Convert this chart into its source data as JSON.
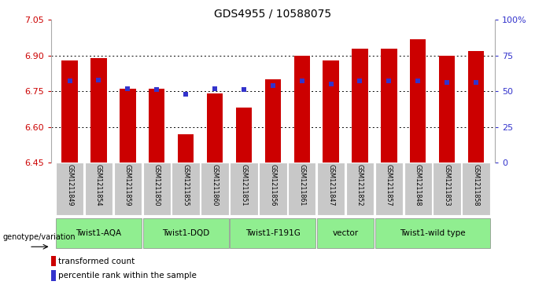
{
  "title": "GDS4955 / 10588075",
  "samples": [
    "GSM1211849",
    "GSM1211854",
    "GSM1211859",
    "GSM1211850",
    "GSM1211855",
    "GSM1211860",
    "GSM1211851",
    "GSM1211856",
    "GSM1211861",
    "GSM1211847",
    "GSM1211852",
    "GSM1211857",
    "GSM1211848",
    "GSM1211853",
    "GSM1211858"
  ],
  "bar_values": [
    6.88,
    6.89,
    6.76,
    6.76,
    6.57,
    6.74,
    6.68,
    6.8,
    6.9,
    6.88,
    6.93,
    6.93,
    6.97,
    6.9,
    6.92
  ],
  "percentile_values": [
    57,
    58,
    52,
    51,
    48,
    52,
    51,
    54,
    57,
    55,
    57,
    57,
    57,
    56,
    56
  ],
  "ylim_left": [
    6.45,
    7.05
  ],
  "ylim_right": [
    0,
    100
  ],
  "yticks_left": [
    6.45,
    6.6,
    6.75,
    6.9,
    7.05
  ],
  "yticks_right": [
    0,
    25,
    50,
    75,
    100
  ],
  "ytick_labels_right": [
    "0",
    "25",
    "50",
    "75",
    "100%"
  ],
  "bar_color": "#cc0000",
  "percentile_color": "#3333cc",
  "bar_bottom": 6.45,
  "groups": [
    {
      "label": "Twist1-AQA",
      "start": 0,
      "end": 3
    },
    {
      "label": "Twist1-DQD",
      "start": 3,
      "end": 6
    },
    {
      "label": "Twist1-F191G",
      "start": 6,
      "end": 9
    },
    {
      "label": "vector",
      "start": 9,
      "end": 11
    },
    {
      "label": "Twist1-wild type",
      "start": 11,
      "end": 15
    }
  ],
  "group_color": "#90ee90",
  "genotype_label": "genotype/variation",
  "legend_transformed": "transformed count",
  "legend_percentile": "percentile rank within the sample",
  "left_tick_color": "#cc0000",
  "right_tick_color": "#3333cc",
  "grid_dotted_values": [
    6.6,
    6.75,
    6.9
  ],
  "sample_bg_color": "#c8c8c8",
  "bar_width": 0.55
}
